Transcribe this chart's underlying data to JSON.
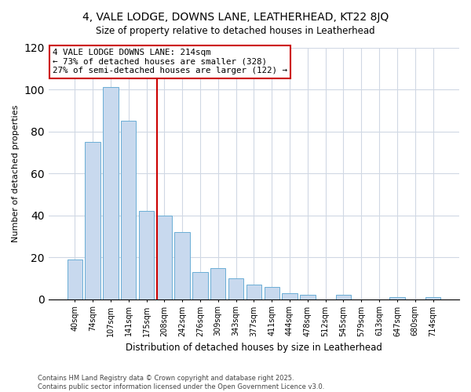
{
  "title": "4, VALE LODGE, DOWNS LANE, LEATHERHEAD, KT22 8JQ",
  "subtitle": "Size of property relative to detached houses in Leatherhead",
  "xlabel": "Distribution of detached houses by size in Leatherhead",
  "ylabel": "Number of detached properties",
  "bar_color": "#c8d9ee",
  "bar_edge_color": "#6baed6",
  "categories": [
    "40sqm",
    "74sqm",
    "107sqm",
    "141sqm",
    "175sqm",
    "208sqm",
    "242sqm",
    "276sqm",
    "309sqm",
    "343sqm",
    "377sqm",
    "411sqm",
    "444sqm",
    "478sqm",
    "512sqm",
    "545sqm",
    "579sqm",
    "613sqm",
    "647sqm",
    "680sqm",
    "714sqm"
  ],
  "values": [
    19,
    75,
    101,
    85,
    42,
    40,
    32,
    13,
    15,
    10,
    7,
    6,
    3,
    2,
    0,
    2,
    0,
    0,
    1,
    0,
    1
  ],
  "ylim": [
    0,
    120
  ],
  "yticks": [
    0,
    20,
    40,
    60,
    80,
    100,
    120
  ],
  "vline_color": "#cc0000",
  "annotation_title": "4 VALE LODGE DOWNS LANE: 214sqm",
  "annotation_line1": "← 73% of detached houses are smaller (328)",
  "annotation_line2": "27% of semi-detached houses are larger (122) →",
  "footer1": "Contains HM Land Registry data © Crown copyright and database right 2025.",
  "footer2": "Contains public sector information licensed under the Open Government Licence v3.0.",
  "grid_color": "#d0d8e4"
}
